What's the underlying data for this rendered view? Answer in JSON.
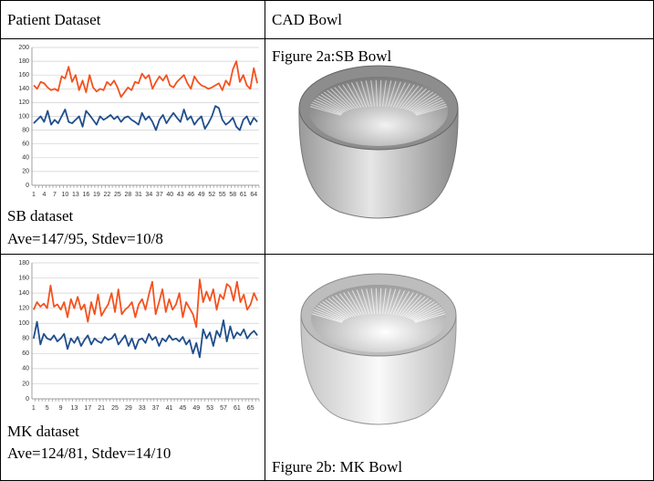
{
  "table": {
    "header": [
      "Patient Dataset",
      "CAD Bowl"
    ],
    "rows": [
      {
        "dataset": "SB dataset",
        "stats": "Ave=147/95, Stdev=10/8",
        "figure": "Figure 2a:SB Bowl"
      },
      {
        "dataset": "MK dataset",
        "stats": "Ave=124/81, Stdev=14/10",
        "figure": "Figure 2b: MK Bowl"
      }
    ]
  },
  "chart_data": [
    {
      "type": "line",
      "categories": [
        1,
        null,
        null,
        4,
        null,
        null,
        7,
        null,
        null,
        10,
        null,
        null,
        13,
        null,
        null,
        16,
        null,
        null,
        19,
        null,
        null,
        22,
        null,
        null,
        25,
        null,
        null,
        28,
        null,
        null,
        31,
        null,
        null,
        34,
        null,
        null,
        37,
        null,
        null,
        40,
        null,
        null,
        43,
        null,
        null,
        46,
        null,
        null,
        49,
        null,
        null,
        52,
        null,
        null,
        55,
        null,
        null,
        58,
        null,
        null,
        61,
        null,
        null,
        64,
        null
      ],
      "series": [
        {
          "color": "#f4511e",
          "values": [
            145,
            140,
            150,
            148,
            142,
            138,
            140,
            137,
            158,
            155,
            172,
            150,
            160,
            138,
            152,
            135,
            160,
            142,
            136,
            140,
            138,
            150,
            145,
            152,
            142,
            128,
            135,
            142,
            138,
            150,
            148,
            162,
            155,
            160,
            140,
            150,
            158,
            152,
            160,
            145,
            142,
            150,
            155,
            160,
            148,
            140,
            158,
            150,
            145,
            143,
            140,
            142,
            145,
            148,
            138,
            152,
            145,
            168,
            180,
            150,
            160,
            145,
            140,
            170,
            148
          ]
        },
        {
          "color": "#1f4e8c",
          "values": [
            90,
            95,
            100,
            92,
            108,
            88,
            95,
            90,
            100,
            110,
            92,
            90,
            95,
            100,
            85,
            108,
            102,
            95,
            88,
            100,
            95,
            98,
            102,
            96,
            100,
            92,
            98,
            100,
            95,
            92,
            88,
            105,
            95,
            100,
            92,
            80,
            95,
            102,
            90,
            98,
            105,
            98,
            92,
            110,
            95,
            100,
            88,
            95,
            100,
            82,
            90,
            100,
            115,
            112,
            95,
            88,
            92,
            98,
            85,
            80,
            95,
            100,
            88,
            98,
            92
          ]
        }
      ],
      "ylim": [
        0,
        200
      ],
      "yticks": [
        0,
        20,
        40,
        60,
        80,
        100,
        120,
        140,
        160,
        180,
        200
      ],
      "grid": true
    },
    {
      "type": "line",
      "categories": [
        1,
        null,
        null,
        null,
        5,
        null,
        null,
        null,
        9,
        null,
        null,
        null,
        13,
        null,
        null,
        null,
        17,
        null,
        null,
        null,
        21,
        null,
        null,
        null,
        25,
        null,
        null,
        null,
        29,
        null,
        null,
        null,
        33,
        null,
        null,
        null,
        37,
        null,
        null,
        null,
        41,
        null,
        null,
        null,
        45,
        null,
        null,
        null,
        49,
        null,
        null,
        null,
        53,
        null,
        null,
        null,
        57,
        null,
        null,
        null,
        61,
        null,
        null,
        null,
        65,
        null,
        null
      ],
      "series": [
        {
          "color": "#f4511e",
          "values": [
            118,
            128,
            122,
            126,
            120,
            150,
            122,
            125,
            118,
            128,
            108,
            132,
            120,
            135,
            118,
            125,
            102,
            128,
            112,
            138,
            110,
            118,
            125,
            140,
            115,
            145,
            112,
            118,
            122,
            128,
            108,
            125,
            132,
            118,
            138,
            155,
            112,
            128,
            145,
            115,
            132,
            118,
            125,
            140,
            108,
            128,
            120,
            112,
            95,
            158,
            128,
            142,
            130,
            145,
            118,
            138,
            132,
            152,
            148,
            130,
            155,
            128,
            138,
            118,
            125,
            140,
            130
          ]
        },
        {
          "color": "#1f4e8c",
          "values": [
            80,
            102,
            72,
            86,
            80,
            78,
            84,
            76,
            80,
            86,
            66,
            80,
            74,
            82,
            70,
            78,
            84,
            72,
            80,
            76,
            74,
            82,
            78,
            80,
            86,
            72,
            78,
            84,
            70,
            80,
            66,
            78,
            80,
            74,
            86,
            78,
            82,
            70,
            80,
            76,
            84,
            78,
            80,
            76,
            82,
            72,
            78,
            60,
            74,
            55,
            92,
            80,
            88,
            70,
            90,
            82,
            104,
            76,
            96,
            80,
            88,
            84,
            92,
            80,
            86,
            90,
            84
          ]
        }
      ],
      "ylim": [
        0,
        180
      ],
      "yticks": [
        0,
        20,
        40,
        60,
        80,
        100,
        120,
        140,
        160,
        180
      ],
      "grid": true
    }
  ]
}
